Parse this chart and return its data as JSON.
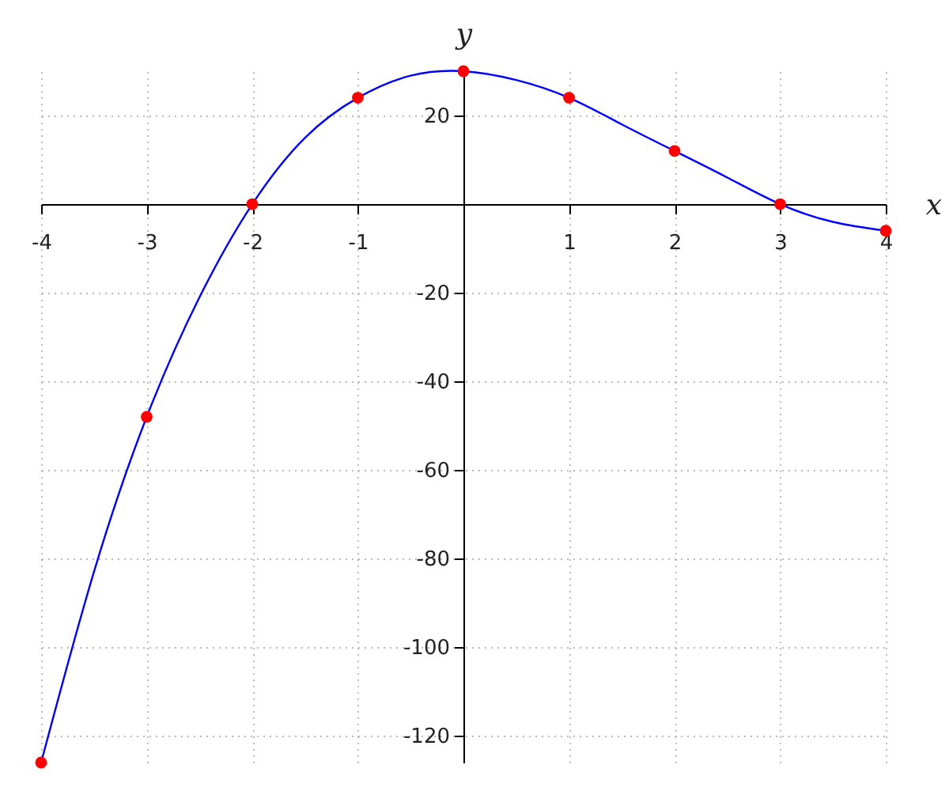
{
  "chart_data": {
    "type": "line",
    "xlabel": "x",
    "ylabel": "y",
    "xlim": [
      -4,
      4
    ],
    "ylim": [
      -126,
      30
    ],
    "xticks": [
      -4,
      -3,
      -2,
      -1,
      1,
      2,
      3,
      4
    ],
    "yticks": [
      -120,
      -100,
      -80,
      -60,
      -40,
      -20,
      20
    ],
    "grid": true,
    "series": [
      {
        "color": "#0000ff",
        "x": [
          -4,
          -3.5,
          -3,
          -2.5,
          -2,
          -1.5,
          -1,
          -0.5,
          0,
          0.5,
          1,
          1.5,
          2,
          2.5,
          3,
          3.5,
          4
        ],
        "values": [
          -126,
          -83,
          -48,
          -21,
          0,
          15,
          24,
          29,
          30,
          28,
          24,
          18,
          12,
          6,
          0,
          -4,
          -6
        ]
      },
      {
        "type": "scatter",
        "color": "#ff0000",
        "marker": "circle",
        "x": [
          -4,
          -3,
          -2,
          -1,
          0,
          1,
          2,
          3,
          4
        ],
        "values": [
          -126,
          -48,
          0,
          24,
          30,
          24,
          12,
          0,
          -6
        ]
      }
    ]
  }
}
